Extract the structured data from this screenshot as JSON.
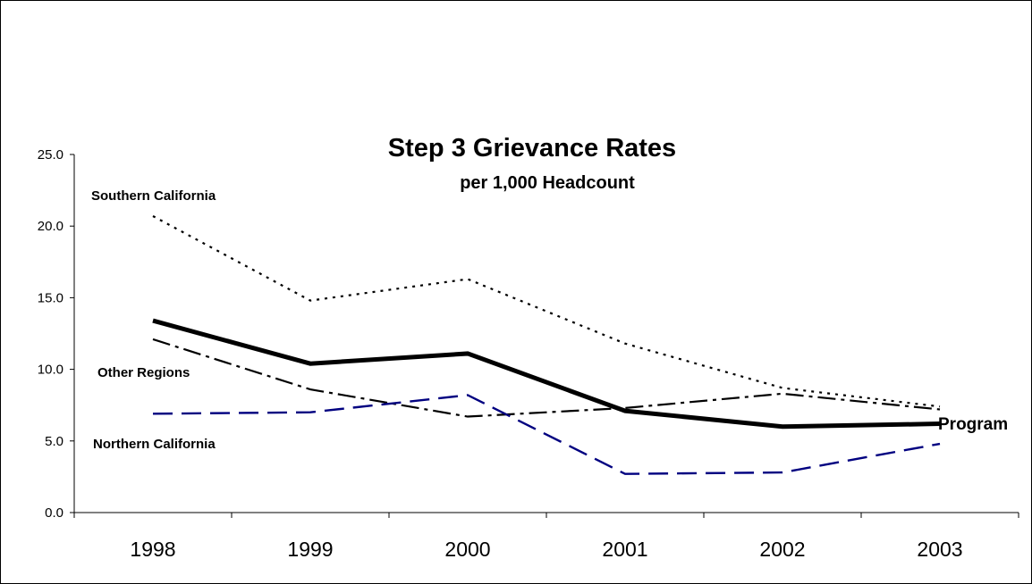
{
  "chart_data": {
    "type": "line",
    "title": "Step 3 Grievance Rates",
    "subtitle": "per 1,000 Headcount",
    "xlabel": "",
    "ylabel": "",
    "categories": [
      "1998",
      "1999",
      "2000",
      "2001",
      "2002",
      "2003"
    ],
    "ylim": [
      0,
      25
    ],
    "yticks": [
      "0.0",
      "5.0",
      "10.0",
      "15.0",
      "20.0",
      "25.0"
    ],
    "grid": false,
    "legend": "none (series labeled directly on chart)",
    "series": [
      {
        "name": "Southern California",
        "values": [
          20.7,
          14.8,
          16.3,
          11.8,
          8.7,
          7.4
        ],
        "color": "#000000",
        "style": "dotted"
      },
      {
        "name": "Other Regions",
        "values": [
          12.1,
          8.6,
          6.7,
          7.3,
          8.3,
          7.2
        ],
        "color": "#000000",
        "style": "dash-dot"
      },
      {
        "name": "Program",
        "values": [
          13.4,
          10.4,
          11.1,
          7.1,
          6.0,
          6.2
        ],
        "color": "#000000",
        "style": "solid-thick"
      },
      {
        "name": "Northern California",
        "values": [
          6.9,
          7.0,
          8.2,
          2.7,
          2.8,
          4.8
        ],
        "color": "#000080",
        "style": "dashed"
      }
    ]
  }
}
